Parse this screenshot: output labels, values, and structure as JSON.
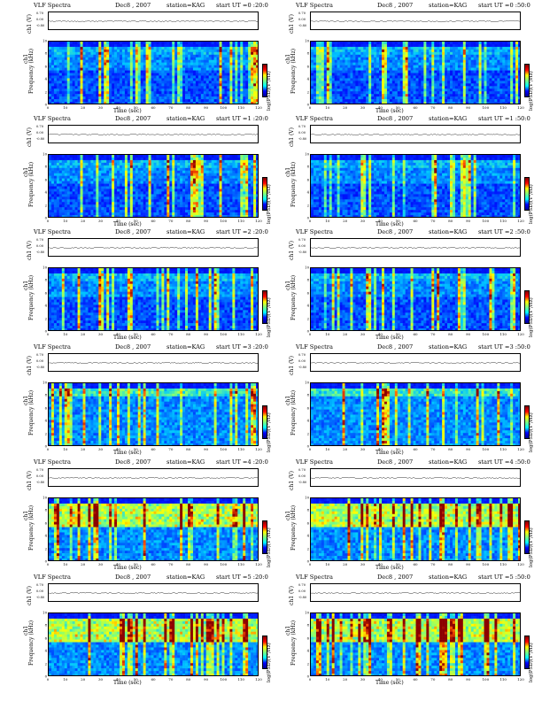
{
  "header": {
    "title": "VLF Spectra",
    "date": "Dec8 , 2007",
    "station": "station=KAG",
    "start_prefix": "start  UT ="
  },
  "panel_labels": {
    "ch1_ylabel": "ch1 (V)",
    "ch1_ticks": [
      "0.70",
      "0.00",
      "-0.80"
    ],
    "spec_ylabel": "ch1\nFrequency (kHz)",
    "ylabel_kHz": "Frequency (kHz)",
    "ylabel_top": "ch1",
    "xlabel": "Time (sec)",
    "xticks": [
      "0",
      "10",
      "20",
      "30",
      "40",
      "50",
      "60",
      "70",
      "80",
      "90",
      "100",
      "110",
      "120"
    ],
    "yticks": [
      "10",
      "8",
      "6",
      "4",
      "2",
      "0"
    ],
    "colorbar_label": "log(PSD)(V²/Hz)"
  },
  "chart_data": [
    {
      "type": "heatmap",
      "start": "0 :20:0",
      "x_range": [
        0,
        120
      ],
      "y_range": [
        0,
        10
      ],
      "pattern": "broadband impulsive bursts 0-10 kHz"
    },
    {
      "type": "heatmap",
      "start": "0 :50:0",
      "x_range": [
        0,
        120
      ],
      "y_range": [
        0,
        10
      ],
      "pattern": "broadband impulsive bursts 0-10 kHz"
    },
    {
      "type": "heatmap",
      "start": "1 :20:0",
      "x_range": [
        0,
        120
      ],
      "y_range": [
        0,
        10
      ],
      "pattern": "broadband impulsive bursts 0-10 kHz"
    },
    {
      "type": "heatmap",
      "start": "1 :50:0",
      "x_range": [
        0,
        120
      ],
      "y_range": [
        0,
        10
      ],
      "pattern": "broadband impulsive bursts 0-10 kHz"
    },
    {
      "type": "heatmap",
      "start": "2 :20:0",
      "x_range": [
        0,
        120
      ],
      "y_range": [
        0,
        10
      ],
      "pattern": "broadband impulsive bursts 0-10 kHz"
    },
    {
      "type": "heatmap",
      "start": "2 :50:0",
      "x_range": [
        0,
        120
      ],
      "y_range": [
        0,
        10
      ],
      "pattern": "broadband impulsive bursts 0-10 kHz"
    },
    {
      "type": "heatmap",
      "start": "3 :20:0",
      "x_range": [
        0,
        120
      ],
      "y_range": [
        0,
        10
      ],
      "pattern": "enhanced band 8-10 kHz"
    },
    {
      "type": "heatmap",
      "start": "3 :50:0",
      "x_range": [
        0,
        120
      ],
      "y_range": [
        0,
        10
      ],
      "pattern": "enhanced band 8-10 kHz"
    },
    {
      "type": "heatmap",
      "start": "4 :20:0",
      "x_range": [
        0,
        120
      ],
      "y_range": [
        0,
        10
      ],
      "pattern": "strong band 6-10 kHz"
    },
    {
      "type": "heatmap",
      "start": "4 :50:0",
      "x_range": [
        0,
        120
      ],
      "y_range": [
        0,
        10
      ],
      "pattern": "strong band 6-10 kHz"
    },
    {
      "type": "heatmap",
      "start": "5 :20:0",
      "x_range": [
        0,
        120
      ],
      "y_range": [
        0,
        10
      ],
      "pattern": "intense band 6-10 kHz"
    },
    {
      "type": "heatmap",
      "start": "5 :50:0",
      "x_range": [
        0,
        120
      ],
      "y_range": [
        0,
        10
      ],
      "pattern": "intense band 6-10 kHz"
    }
  ]
}
